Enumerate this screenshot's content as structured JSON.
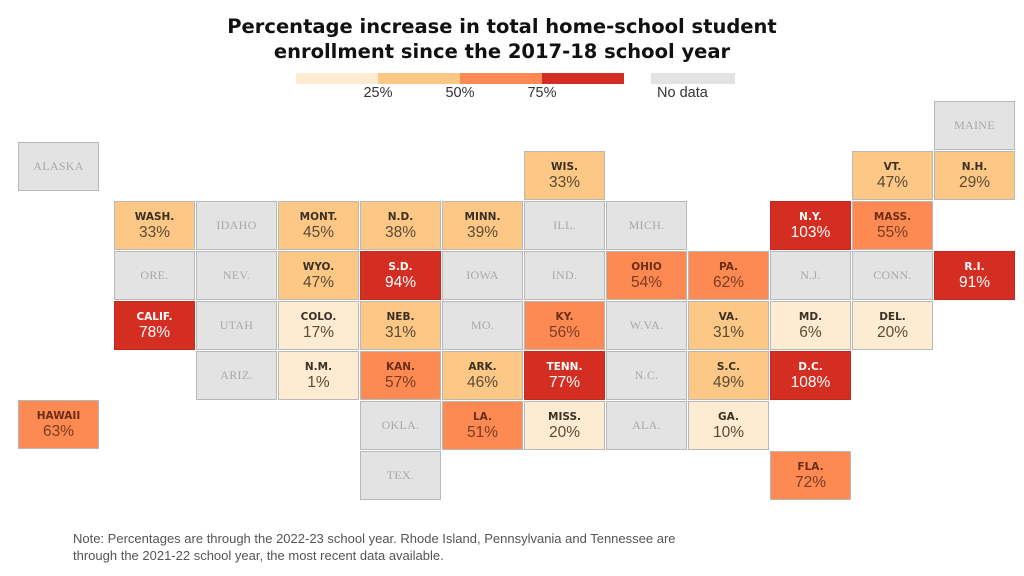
{
  "chart_data": {
    "type": "heatmap",
    "subtype": "tile-grid-map",
    "title_lines": [
      "Percentage increase in total home-school student",
      "enrollment since the 2017-18 school year"
    ],
    "legend": {
      "bins": [
        {
          "min": 0,
          "max": 25,
          "color": "#fdebd2"
        },
        {
          "min": 25,
          "max": 50,
          "color": "#fdc886"
        },
        {
          "min": 50,
          "max": 75,
          "color": "#fd8a52"
        },
        {
          "min": 75,
          "max": null,
          "color": "#d42e22"
        }
      ],
      "tick_labels": [
        "25%",
        "50%",
        "75%"
      ],
      "no_data_label": "No data",
      "no_data_color": "#e3e3e3"
    },
    "units": "percent",
    "states": [
      {
        "abbr": "ALASKA",
        "value": null,
        "col": -1,
        "row": 1,
        "special": "alaska"
      },
      {
        "abbr": "MAINE",
        "value": null,
        "col": 10,
        "row": 0
      },
      {
        "abbr": "WIS.",
        "value": 33,
        "col": 5,
        "row": 1
      },
      {
        "abbr": "VT.",
        "value": 47,
        "col": 9,
        "row": 1
      },
      {
        "abbr": "N.H.",
        "value": 29,
        "col": 10,
        "row": 1
      },
      {
        "abbr": "WASH.",
        "value": 33,
        "col": 0,
        "row": 2
      },
      {
        "abbr": "IDAHO",
        "value": null,
        "col": 1,
        "row": 2
      },
      {
        "abbr": "MONT.",
        "value": 45,
        "col": 2,
        "row": 2
      },
      {
        "abbr": "N.D.",
        "value": 38,
        "col": 3,
        "row": 2
      },
      {
        "abbr": "MINN.",
        "value": 39,
        "col": 4,
        "row": 2
      },
      {
        "abbr": "ILL.",
        "value": null,
        "col": 5,
        "row": 2
      },
      {
        "abbr": "MICH.",
        "value": null,
        "col": 6,
        "row": 2
      },
      {
        "abbr": "N.Y.",
        "value": 103,
        "col": 8,
        "row": 2
      },
      {
        "abbr": "MASS.",
        "value": 55,
        "col": 9,
        "row": 2
      },
      {
        "abbr": "ORE.",
        "value": null,
        "col": 0,
        "row": 3
      },
      {
        "abbr": "NEV.",
        "value": null,
        "col": 1,
        "row": 3
      },
      {
        "abbr": "WYO.",
        "value": 47,
        "col": 2,
        "row": 3
      },
      {
        "abbr": "S.D.",
        "value": 94,
        "col": 3,
        "row": 3
      },
      {
        "abbr": "IOWA",
        "value": null,
        "col": 4,
        "row": 3
      },
      {
        "abbr": "IND.",
        "value": null,
        "col": 5,
        "row": 3
      },
      {
        "abbr": "OHIO",
        "value": 54,
        "col": 6,
        "row": 3
      },
      {
        "abbr": "PA.",
        "value": 62,
        "col": 7,
        "row": 3
      },
      {
        "abbr": "N.J.",
        "value": null,
        "col": 8,
        "row": 3
      },
      {
        "abbr": "CONN.",
        "value": null,
        "col": 9,
        "row": 3
      },
      {
        "abbr": "R.I.",
        "value": 91,
        "col": 10,
        "row": 3
      },
      {
        "abbr": "CALIF.",
        "value": 78,
        "col": 0,
        "row": 4
      },
      {
        "abbr": "UTAH",
        "value": null,
        "col": 1,
        "row": 4
      },
      {
        "abbr": "COLO.",
        "value": 17,
        "col": 2,
        "row": 4
      },
      {
        "abbr": "NEB.",
        "value": 31,
        "col": 3,
        "row": 4
      },
      {
        "abbr": "MO.",
        "value": null,
        "col": 4,
        "row": 4
      },
      {
        "abbr": "KY.",
        "value": 56,
        "col": 5,
        "row": 4
      },
      {
        "abbr": "W.VA.",
        "value": null,
        "col": 6,
        "row": 4
      },
      {
        "abbr": "VA.",
        "value": 31,
        "col": 7,
        "row": 4
      },
      {
        "abbr": "MD.",
        "value": 6,
        "col": 8,
        "row": 4
      },
      {
        "abbr": "DEL.",
        "value": 20,
        "col": 9,
        "row": 4
      },
      {
        "abbr": "ARIZ.",
        "value": null,
        "col": 1,
        "row": 5
      },
      {
        "abbr": "N.M.",
        "value": 1,
        "col": 2,
        "row": 5
      },
      {
        "abbr": "KAN.",
        "value": 57,
        "col": 3,
        "row": 5
      },
      {
        "abbr": "ARK.",
        "value": 46,
        "col": 4,
        "row": 5
      },
      {
        "abbr": "TENN.",
        "value": 77,
        "col": 5,
        "row": 5
      },
      {
        "abbr": "N.C.",
        "value": null,
        "col": 6,
        "row": 5
      },
      {
        "abbr": "S.C.",
        "value": 49,
        "col": 7,
        "row": 5
      },
      {
        "abbr": "D.C.",
        "value": 108,
        "col": 8,
        "row": 5
      },
      {
        "abbr": "HAWAII",
        "value": 63,
        "col": -1,
        "row": 6,
        "special": "hawaii"
      },
      {
        "abbr": "OKLA.",
        "value": null,
        "col": 3,
        "row": 6
      },
      {
        "abbr": "LA.",
        "value": 51,
        "col": 4,
        "row": 6
      },
      {
        "abbr": "MISS.",
        "value": 20,
        "col": 5,
        "row": 6
      },
      {
        "abbr": "ALA.",
        "value": null,
        "col": 6,
        "row": 6
      },
      {
        "abbr": "GA.",
        "value": 10,
        "col": 7,
        "row": 6
      },
      {
        "abbr": "TEX.",
        "value": null,
        "col": 3,
        "row": 7
      },
      {
        "abbr": "FLA.",
        "value": 72,
        "col": 8,
        "row": 7
      }
    ]
  },
  "note_lines": [
    "Note: Percentages are through the 2022-23 school year. Rhode Island, Pennsylvania and Tennessee are",
    "through the 2021-22 school year, the most recent data available."
  ]
}
